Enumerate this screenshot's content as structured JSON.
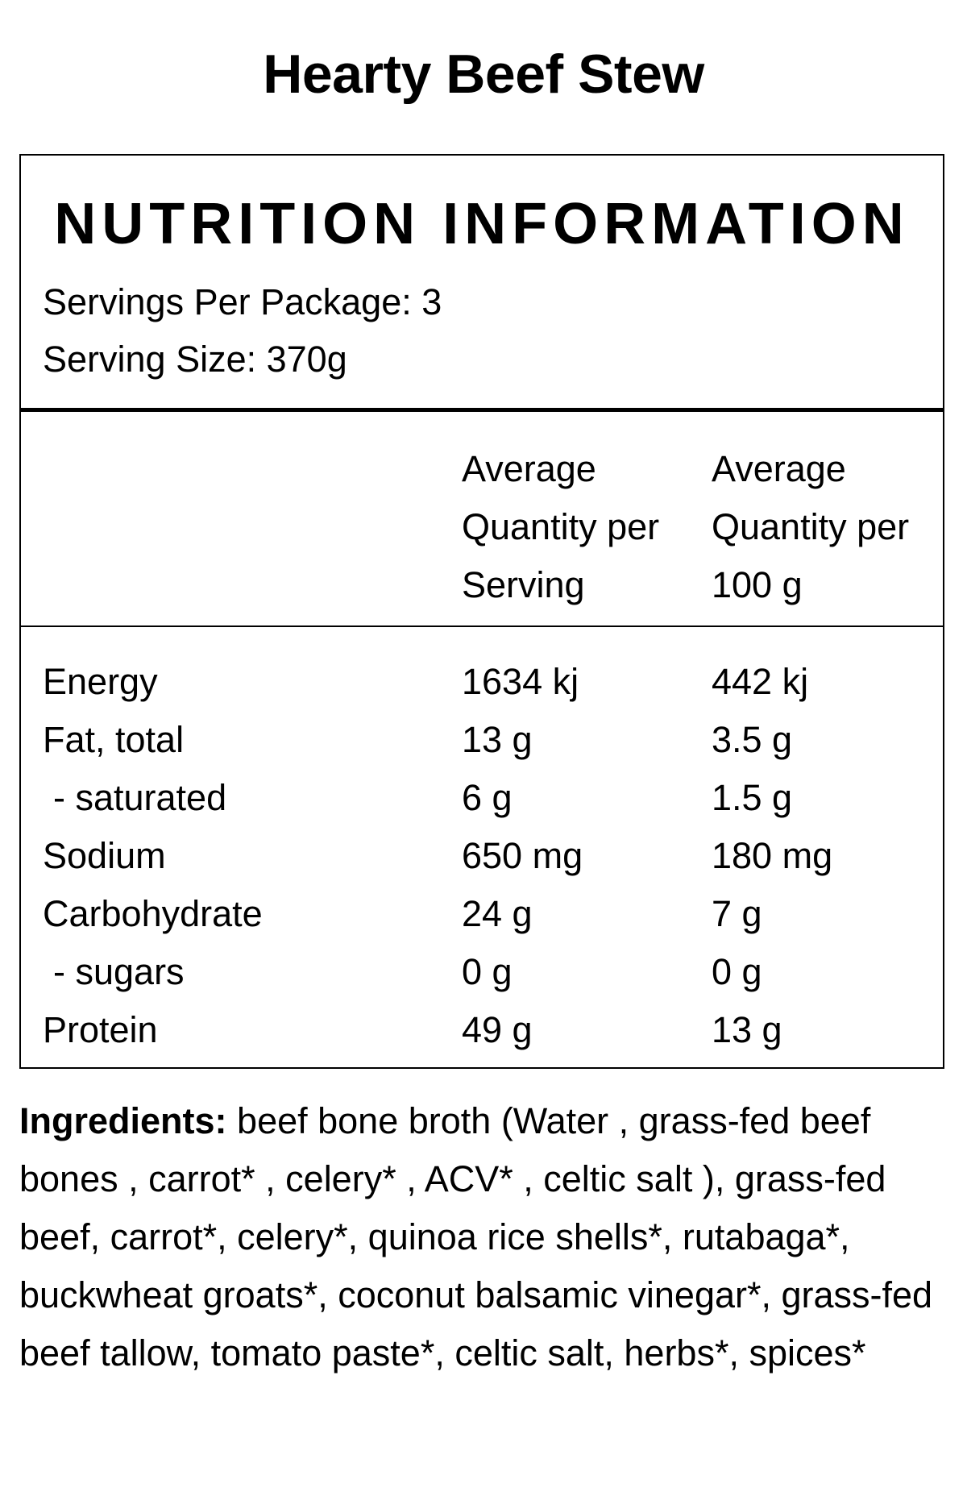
{
  "product": {
    "title": "Hearty Beef Stew"
  },
  "nutrition": {
    "heading": "NUTRITION INFORMATION",
    "servings_per_package": "Servings Per Package: 3",
    "serving_size": "Serving Size: 370g",
    "columns": {
      "per_serving": [
        "Average",
        "Quantity per",
        "Serving"
      ],
      "per_100g": [
        "Average",
        "Quantity per",
        "100 g"
      ]
    },
    "rows": [
      {
        "name": "Energy",
        "per_serving": "1634 kj",
        "per_100g": "442 kj"
      },
      {
        "name": "Fat, total",
        "per_serving": "13 g",
        "per_100g": "3.5 g"
      },
      {
        "name": "- saturated",
        "per_serving": "6 g",
        "per_100g": "1.5 g"
      },
      {
        "name": "Sodium",
        "per_serving": "650 mg",
        "per_100g": "180 mg"
      },
      {
        "name": "Carbohydrate",
        "per_serving": "24 g",
        "per_100g": "7 g"
      },
      {
        "name": "- sugars",
        "per_serving": "0 g",
        "per_100g": "0 g"
      },
      {
        "name": "Protein",
        "per_serving": "49 g",
        "per_100g": "13 g"
      }
    ]
  },
  "ingredients": {
    "label": "Ingredients:",
    "text": "beef bone broth (Water , grass-fed beef bones , carrot* , celery* , ACV* , celtic salt ), grass-fed beef, carrot*, celery*, quinoa rice shells*, rutabaga*, buckwheat groats*, coconut balsamic vinegar*, grass-fed beef tallow, tomato paste*, celtic salt, herbs*, spices*"
  }
}
